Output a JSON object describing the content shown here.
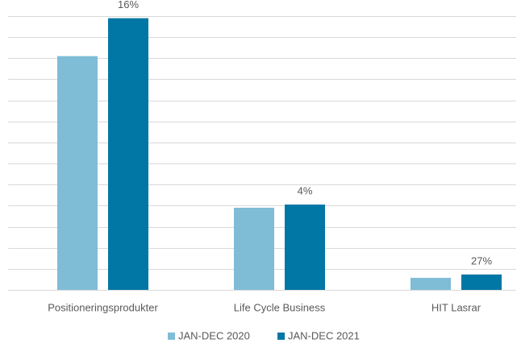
{
  "chart_data": {
    "type": "bar",
    "categories": [
      "Positioneringsprodukter",
      "Life Cycle Business",
      "HIT Lasrar"
    ],
    "series": [
      {
        "name": "JAN-DEC 2020",
        "color": "#7fbcd6",
        "values": [
          11.1,
          3.9,
          0.57
        ]
      },
      {
        "name": "JAN-DEC 2021",
        "color": "#0077a4",
        "values": [
          12.9,
          4.05,
          0.73
        ]
      }
    ],
    "annotations": [
      "16%",
      "4%",
      "27%"
    ],
    "ylim": [
      0,
      13
    ],
    "yticks": [
      0,
      1,
      2,
      3,
      4,
      5,
      6,
      7,
      8,
      9,
      10,
      11,
      12,
      13
    ],
    "grid": true,
    "legend": "bottom"
  }
}
